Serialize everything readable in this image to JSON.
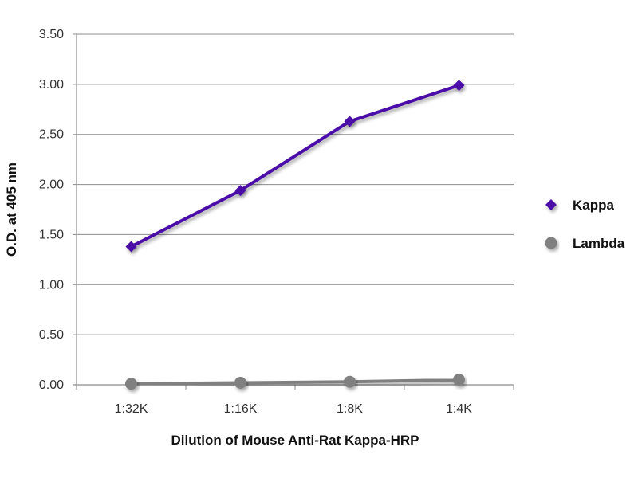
{
  "chart_data": {
    "type": "line",
    "title": "",
    "xlabel": "Dilution of Mouse Anti-Rat Kappa-HRP",
    "ylabel": "O.D. at 405 nm",
    "categories": [
      "1:32K",
      "1:16K",
      "1:8K",
      "1:4K"
    ],
    "ylim": [
      0,
      3.5
    ],
    "yticks": [
      "0.00",
      "0.50",
      "1.00",
      "1.50",
      "2.00",
      "2.50",
      "3.00",
      "3.50"
    ],
    "grid": true,
    "legend_position": "right",
    "series": [
      {
        "name": "Kappa",
        "values": [
          1.38,
          1.94,
          2.63,
          2.99
        ],
        "color": "#4b0ea8",
        "marker": "diamond"
      },
      {
        "name": "Lambda",
        "values": [
          0.01,
          0.02,
          0.03,
          0.05
        ],
        "color": "#808080",
        "marker": "circle"
      }
    ]
  }
}
